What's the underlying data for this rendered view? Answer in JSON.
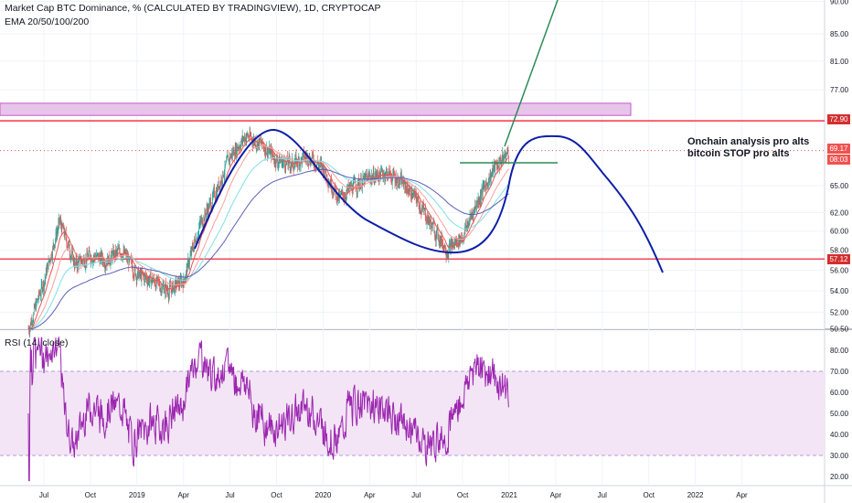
{
  "header": {
    "title": "Market Cap BTC Dominance, % (CALCULATED BY TRADINGVIEW), 1D, CRYPTOCAP",
    "indicator": "EMA 20/50/100/200"
  },
  "rsi": {
    "label": "RSI (14, close)"
  },
  "annotation": {
    "line1": "Onchain analysis pro alts",
    "line2": "bitcoin STOP pro alts"
  },
  "price_tags": {
    "resistance": "72.90",
    "last": "69.17",
    "countdown": "08:03",
    "support": "57.12"
  },
  "colors": {
    "up": "#26a69a",
    "down": "#ef5350",
    "ema20": "#ef5350",
    "ema50": "#f7a29e",
    "ema100": "#7fe0e6",
    "ema200": "#5b5fb6",
    "rsi": "#9c27b0",
    "rsi_band": "#e1bee7",
    "hline": "#f23645",
    "zone_fill": "#e7c5ea",
    "drawn_curve": "#0d1ea8",
    "drawn_trend": "#2e8b57",
    "tag_last": "#ef5350",
    "tag_resistance": "#d32f2f"
  },
  "chart_data": {
    "type": "candlestick",
    "title": "Market Cap BTC Dominance, % (CALCULATED BY TRADINGVIEW), 1D, CRYPTOCAP",
    "price_axis": {
      "ticks": [
        "90.00",
        "85.00",
        "81.00",
        "77.00",
        "72.90",
        "69.17",
        "65.00",
        "62.00",
        "60.00",
        "58.00",
        "57.12",
        "56.00",
        "54.00",
        "52.00",
        "50.50"
      ],
      "scale": "log"
    },
    "time_axis": {
      "ticks": [
        "Jul",
        "Oct",
        "2019",
        "Apr",
        "Jul",
        "Oct",
        "2020",
        "Apr",
        "Jul",
        "Oct",
        "2021",
        "Apr",
        "Jul",
        "Oct",
        "2022",
        "Apr"
      ]
    },
    "horizontal_lines": [
      72.9,
      57.12
    ],
    "resistance_zone": [
      73.6,
      75.2
    ],
    "last_price": 69.17,
    "price_path": [
      {
        "t": "2018-06",
        "v": 50.5
      },
      {
        "t": "2018-07",
        "v": 55.0
      },
      {
        "t": "2018-08",
        "v": 61.0
      },
      {
        "t": "2018-09",
        "v": 56.5
      },
      {
        "t": "2018-10",
        "v": 57.5
      },
      {
        "t": "2018-11",
        "v": 57.0
      },
      {
        "t": "2018-12",
        "v": 58.0
      },
      {
        "t": "2019-01",
        "v": 55.5
      },
      {
        "t": "2019-02",
        "v": 55.0
      },
      {
        "t": "2019-03",
        "v": 54.0
      },
      {
        "t": "2019-04",
        "v": 55.0
      },
      {
        "t": "2019-05",
        "v": 60.5
      },
      {
        "t": "2019-06",
        "v": 64.0
      },
      {
        "t": "2019-07",
        "v": 68.5
      },
      {
        "t": "2019-08",
        "v": 71.0
      },
      {
        "t": "2019-09",
        "v": 70.0
      },
      {
        "t": "2019-10",
        "v": 68.0
      },
      {
        "t": "2019-11",
        "v": 67.5
      },
      {
        "t": "2019-12",
        "v": 68.5
      },
      {
        "t": "2020-01",
        "v": 67.0
      },
      {
        "t": "2020-02",
        "v": 63.5
      },
      {
        "t": "2020-03",
        "v": 65.0
      },
      {
        "t": "2020-04",
        "v": 66.0
      },
      {
        "t": "2020-05",
        "v": 66.5
      },
      {
        "t": "2020-06",
        "v": 65.5
      },
      {
        "t": "2020-07",
        "v": 63.5
      },
      {
        "t": "2020-08",
        "v": 60.5
      },
      {
        "t": "2020-09",
        "v": 58.0
      },
      {
        "t": "2020-10",
        "v": 59.5
      },
      {
        "t": "2020-11",
        "v": 63.5
      },
      {
        "t": "2020-12",
        "v": 67.0
      },
      {
        "t": "2021-01",
        "v": 69.17
      }
    ],
    "rsi": {
      "name": "RSI (14, close)",
      "ticks": [
        "80.00",
        "70.00",
        "60.00",
        "50.00",
        "40.00",
        "30.00",
        "20.00"
      ],
      "band": [
        30,
        70
      ],
      "ylim": [
        15,
        88
      ]
    }
  }
}
